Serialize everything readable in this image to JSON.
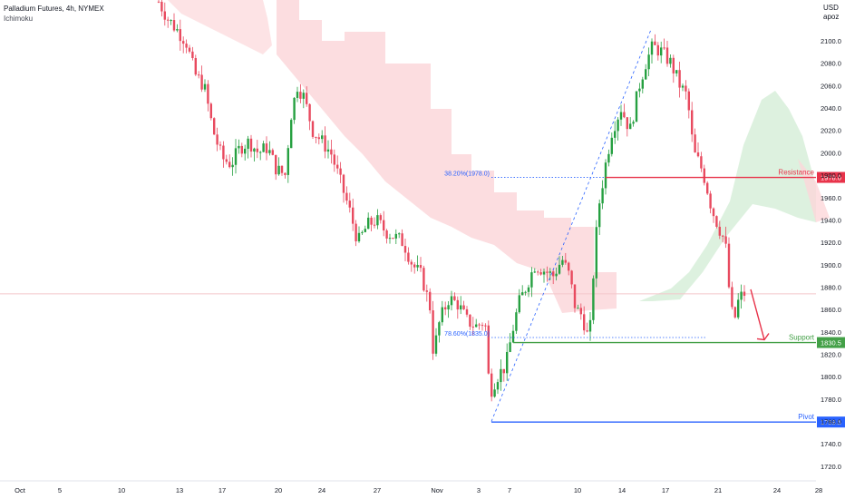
{
  "header": {
    "symbol": "Palladium Futures, 4h, NYMEX",
    "indicator": "Ichimoku",
    "currency": "USD",
    "scale_mode": "apoz"
  },
  "colors": {
    "bull": "#26a041",
    "bear": "#e84a5f",
    "cloud_bear": "#fcd7da",
    "cloud_bull": "#d9efdb",
    "resistance": "#e8334a",
    "support": "#43a047",
    "pivot": "#2962ff",
    "fib": "#2962ff",
    "crosshair": "#f4c7cb"
  },
  "chart_data": {
    "type": "candlestick",
    "y_ticks": [
      "1720.0",
      "1740.0",
      "1760.0",
      "1780.0",
      "1800.0",
      "1820.0",
      "1840.0",
      "1860.0",
      "1880.0",
      "1900.0",
      "1920.0",
      "1940.0",
      "1960.0",
      "1980.0",
      "2000.0",
      "2020.0",
      "2040.0",
      "2060.0",
      "2080.0",
      "2100.0"
    ],
    "ylim": [
      1712,
      2126
    ],
    "x_ticks": [
      "Oct",
      "5",
      "10",
      "13",
      "17",
      "20",
      "24",
      "27",
      "Nov",
      "3",
      "7",
      "10",
      "14",
      "17",
      "21",
      "24",
      "28"
    ],
    "levels": [
      {
        "name": "Resistance",
        "label": "Resistance",
        "value": 1978.0,
        "tag": "1978.0"
      },
      {
        "name": "Support",
        "label": "Support",
        "value": 1830.5,
        "tag": "1830.5"
      },
      {
        "name": "Pivot",
        "label": "Pivot",
        "value": 1759.5,
        "tag": "1759.5"
      }
    ],
    "fib_levels": [
      {
        "label": "38.20%(1978.0)",
        "value": 1978.0
      },
      {
        "label": "78.60%(1835.0)",
        "value": 1835.0
      }
    ],
    "crosshair_price": 1874,
    "forecast": {
      "from_price": 1878,
      "to_price": 1833
    }
  }
}
